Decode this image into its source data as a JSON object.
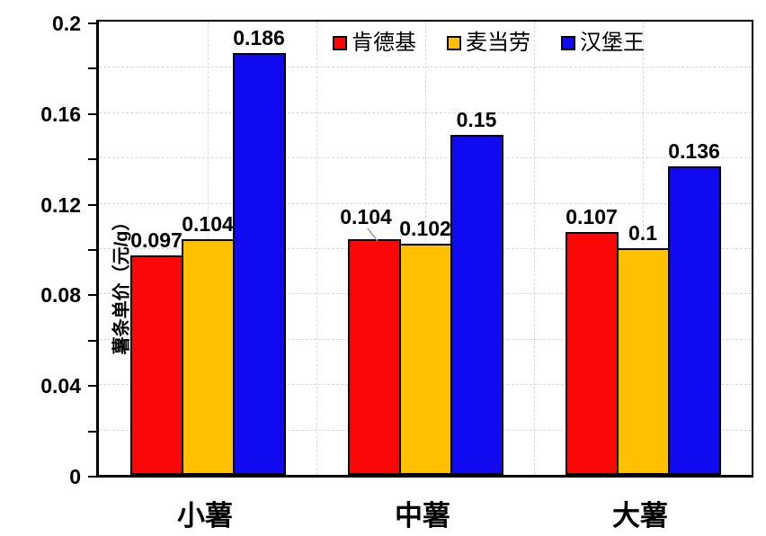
{
  "chart_data": {
    "type": "bar",
    "title": "",
    "ylabel": "薯条单价（元/g）",
    "xlabel": "",
    "categories": [
      "小薯",
      "中薯",
      "大薯"
    ],
    "series": [
      {
        "name": "肯德基",
        "color": "#fa0707",
        "values": [
          0.097,
          0.104,
          0.107
        ],
        "labels": [
          "0.097",
          "0.104",
          "0.107"
        ]
      },
      {
        "name": "麦当劳",
        "color": "#ffc000",
        "values": [
          0.104,
          0.102,
          0.1
        ],
        "labels": [
          "0.104",
          "0.102",
          "0.1"
        ]
      },
      {
        "name": "汉堡王",
        "color": "#0f0af0",
        "values": [
          0.186,
          0.15,
          0.136
        ],
        "labels": [
          "0.186",
          "0.15",
          "0.136"
        ]
      }
    ],
    "ylim": [
      0,
      0.2
    ],
    "yticks": [
      {
        "value": 0,
        "label": "0"
      },
      {
        "value": 0.04,
        "label": "0.04"
      },
      {
        "value": 0.08,
        "label": "0.08"
      },
      {
        "value": 0.12,
        "label": "0.12"
      },
      {
        "value": 0.16,
        "label": "0.16"
      },
      {
        "value": 0.2,
        "label": "0.2"
      }
    ],
    "minor_ytick_interval": 0.02,
    "grid": {
      "horizontal_interval": 0.02,
      "vertical_lines_per_category": 2,
      "style": "dashed",
      "color": "#d9d9d9"
    },
    "legend_position": "top-inside",
    "bar_border_color": "#000000",
    "axis_color": "#000000",
    "background_color": "#ffffff"
  }
}
